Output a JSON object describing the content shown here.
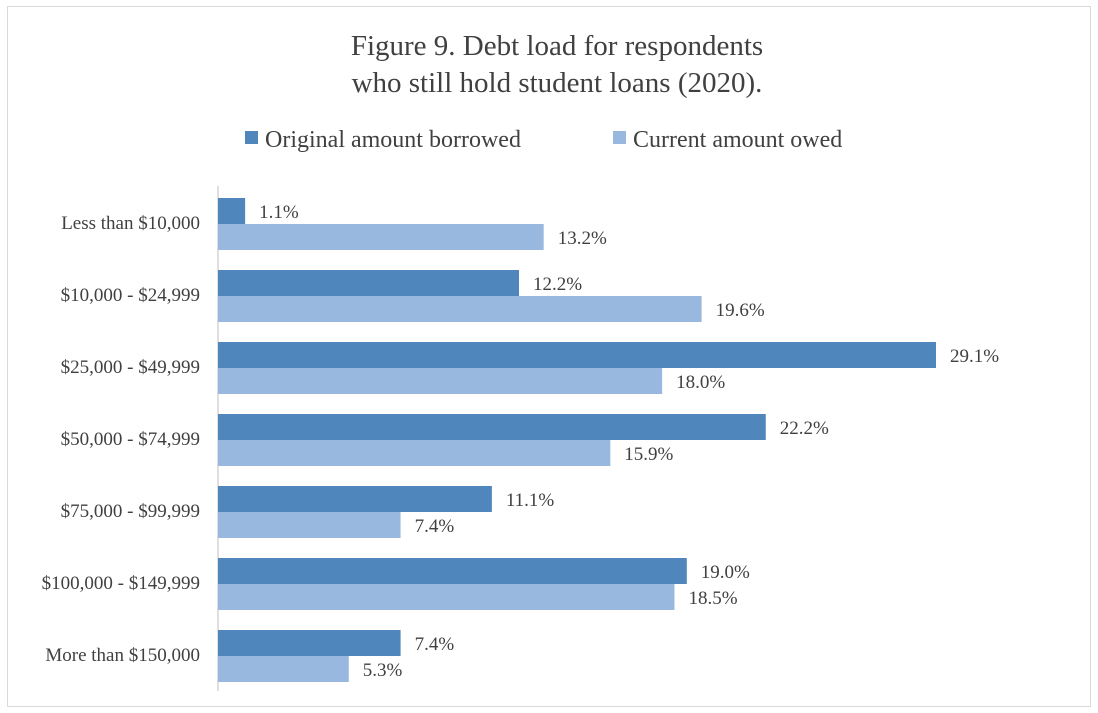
{
  "chart_data": {
    "type": "bar",
    "orientation": "horizontal",
    "title": "Figure 9. Debt load for respondents who still hold student loans (2020).",
    "title_lines": [
      "Figure 9. Debt load for respondents",
      "who still hold student loans (2020)."
    ],
    "legend_position": "top",
    "grid": false,
    "xlim": [
      0,
      30
    ],
    "categories": [
      "Less than $10,000",
      "$10,000 - $24,999",
      "$25,000 - $49,999",
      "$50,000 - $74,999",
      "$75,000 - $99,999",
      "$100,000 - $149,999",
      "More than $150,000"
    ],
    "series": [
      {
        "name": "Original amount borrowed",
        "color": "#4f87bd",
        "values": [
          1.1,
          12.2,
          29.1,
          22.2,
          11.1,
          19.0,
          7.4
        ],
        "labels": [
          "1.1%",
          "12.2%",
          "29.1%",
          "22.2%",
          "11.1%",
          "19.0%",
          "7.4%"
        ]
      },
      {
        "name": "Current amount owed",
        "color": "#98b8e0",
        "values": [
          13.2,
          19.6,
          18.0,
          15.9,
          7.4,
          18.5,
          5.3
        ],
        "labels": [
          "13.2%",
          "19.6%",
          "18.0%",
          "15.9%",
          "7.4%",
          "18.5%",
          "5.3%"
        ]
      }
    ]
  }
}
